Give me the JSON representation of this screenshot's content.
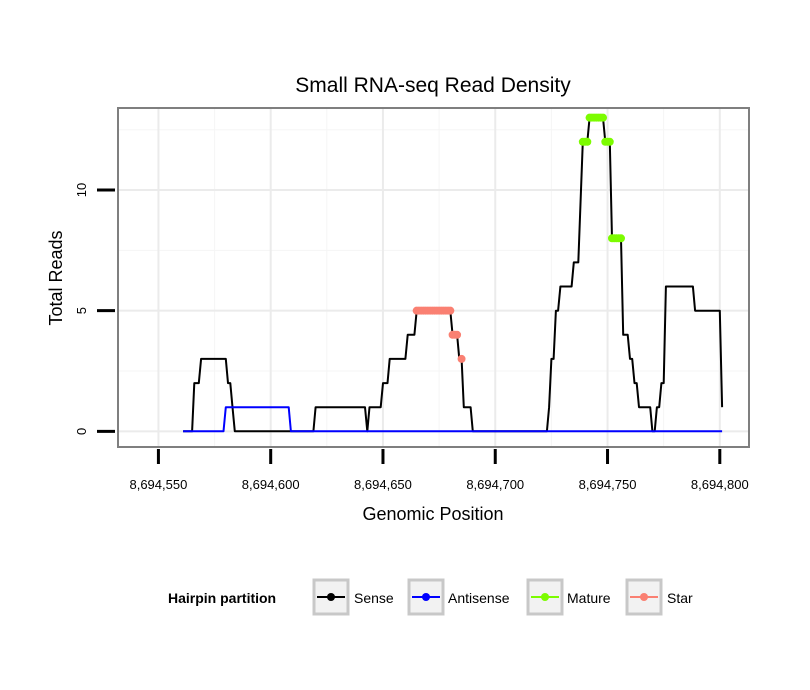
{
  "chart_data": {
    "type": "line",
    "title": "Small RNA-seq Read Density",
    "xlabel": "Genomic Position",
    "ylabel": "Total Reads",
    "xlim": [
      8694532,
      8694813
    ],
    "ylim": [
      -0.65,
      13.4
    ],
    "x_ticks": [
      8694550,
      8694600,
      8694650,
      8694700,
      8694750,
      8694800
    ],
    "x_tick_labels": [
      "8,694,550",
      "8,694,600",
      "8,694,650",
      "8,694,700",
      "8,694,750",
      "8,694,800"
    ],
    "y_ticks": [
      0,
      5,
      10
    ],
    "y_tick_labels": [
      "0",
      "5",
      "10"
    ],
    "grid": true,
    "legend": {
      "title": "Hairpin partition",
      "position": "bottom",
      "entries": [
        "Sense",
        "Antisense",
        "Mature",
        "Star"
      ]
    },
    "series": [
      {
        "name": "Sense",
        "color": "#000000",
        "style": "line",
        "points": [
          [
            8694561,
            0
          ],
          [
            8694565,
            0
          ],
          [
            8694566,
            2
          ],
          [
            8694568,
            2
          ],
          [
            8694569,
            3
          ],
          [
            8694571,
            3
          ],
          [
            8694578,
            3
          ],
          [
            8694580,
            3
          ],
          [
            8694581,
            2
          ],
          [
            8694582,
            2
          ],
          [
            8694583,
            1
          ],
          [
            8694584,
            0
          ],
          [
            8694617,
            0
          ],
          [
            8694619,
            0
          ],
          [
            8694620,
            1
          ],
          [
            8694642,
            1
          ],
          [
            8694643,
            0
          ],
          [
            8694644,
            1
          ],
          [
            8694648,
            1
          ],
          [
            8694649,
            1
          ],
          [
            8694650,
            2
          ],
          [
            8694652,
            2
          ],
          [
            8694653,
            3
          ],
          [
            8694660,
            3
          ],
          [
            8694661,
            4
          ],
          [
            8694664,
            4
          ],
          [
            8694665,
            5
          ],
          [
            8694676,
            5
          ],
          [
            8694680,
            5
          ],
          [
            8694681,
            4
          ],
          [
            8694683,
            4
          ],
          [
            8694684,
            3
          ],
          [
            8694685,
            3
          ],
          [
            8694686,
            1
          ],
          [
            8694688,
            1
          ],
          [
            8694689,
            1
          ],
          [
            8694690,
            0
          ],
          [
            8694723,
            0
          ],
          [
            8694724,
            1
          ],
          [
            8694725,
            3
          ],
          [
            8694726,
            3
          ],
          [
            8694727,
            5
          ],
          [
            8694728,
            5
          ],
          [
            8694729,
            6
          ],
          [
            8694734,
            6
          ],
          [
            8694735,
            7
          ],
          [
            8694737,
            7
          ],
          [
            8694739,
            12
          ],
          [
            8694741,
            12
          ],
          [
            8694742,
            13
          ],
          [
            8694748,
            13
          ],
          [
            8694749,
            12
          ],
          [
            8694751,
            12
          ],
          [
            8694752,
            8
          ],
          [
            8694756,
            8
          ],
          [
            8694757,
            4
          ],
          [
            8694759,
            4
          ],
          [
            8694760,
            3
          ],
          [
            8694761,
            3
          ],
          [
            8694762,
            2
          ],
          [
            8694763,
            2
          ],
          [
            8694764,
            1
          ],
          [
            8694769,
            1
          ],
          [
            8694770,
            0
          ],
          [
            8694771,
            0
          ],
          [
            8694772,
            1
          ],
          [
            8694773,
            1
          ],
          [
            8694774,
            2
          ],
          [
            8694775,
            2
          ],
          [
            8694776,
            6
          ],
          [
            8694779,
            6
          ],
          [
            8694788,
            6
          ],
          [
            8694789,
            5
          ],
          [
            8694797,
            5
          ],
          [
            8694800,
            5
          ],
          [
            8694801,
            1
          ]
        ]
      },
      {
        "name": "Antisense",
        "color": "#0000ff",
        "style": "line",
        "points": [
          [
            8694561,
            0
          ],
          [
            8694579,
            0
          ],
          [
            8694580,
            1
          ],
          [
            8694608,
            1
          ],
          [
            8694609,
            0
          ],
          [
            8694801,
            0
          ]
        ]
      },
      {
        "name": "Mature",
        "color": "#7cfc00",
        "style": "points",
        "points": [
          [
            8694739,
            12
          ],
          [
            8694740,
            12
          ],
          [
            8694741,
            12
          ],
          [
            8694742,
            13
          ],
          [
            8694743,
            13
          ],
          [
            8694744,
            13
          ],
          [
            8694745,
            13
          ],
          [
            8694746,
            13
          ],
          [
            8694747,
            13
          ],
          [
            8694748,
            13
          ],
          [
            8694749,
            12
          ],
          [
            8694750,
            12
          ],
          [
            8694751,
            12
          ],
          [
            8694752,
            8
          ],
          [
            8694753,
            8
          ],
          [
            8694754,
            8
          ],
          [
            8694755,
            8
          ],
          [
            8694756,
            8
          ]
        ]
      },
      {
        "name": "Star",
        "color": "#fa8072",
        "style": "points",
        "points": [
          [
            8694665,
            5
          ],
          [
            8694666,
            5
          ],
          [
            8694667,
            5
          ],
          [
            8694668,
            5
          ],
          [
            8694669,
            5
          ],
          [
            8694670,
            5
          ],
          [
            8694671,
            5
          ],
          [
            8694672,
            5
          ],
          [
            8694673,
            5
          ],
          [
            8694674,
            5
          ],
          [
            8694675,
            5
          ],
          [
            8694676,
            5
          ],
          [
            8694677,
            5
          ],
          [
            8694678,
            5
          ],
          [
            8694679,
            5
          ],
          [
            8694680,
            5
          ],
          [
            8694681,
            4
          ],
          [
            8694682,
            4
          ],
          [
            8694683,
            4
          ],
          [
            8694685,
            3
          ]
        ]
      }
    ]
  }
}
